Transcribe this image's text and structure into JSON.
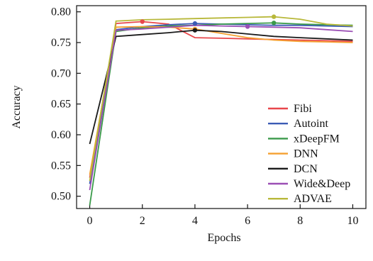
{
  "chart_data": {
    "type": "line",
    "title": "",
    "xlabel": "Epochs",
    "ylabel": "Accuracy",
    "xlim": [
      -0.5,
      10.5
    ],
    "ylim": [
      0.48,
      0.81
    ],
    "xticks": [
      0,
      2,
      4,
      6,
      8,
      10
    ],
    "yticks": [
      0.5,
      0.55,
      0.6,
      0.65,
      0.7,
      0.75,
      0.8
    ],
    "xtick_labels": [
      "0",
      "2",
      "4",
      "6",
      "8",
      "10"
    ],
    "ytick_labels": [
      "0.50",
      "0.55",
      "0.60",
      "0.65",
      "0.70",
      "0.75",
      "0.80"
    ],
    "grid": false,
    "legend_position": "bottom-right",
    "x": [
      0,
      1,
      2,
      3,
      4,
      5,
      6,
      7,
      8,
      9,
      10
    ],
    "series": [
      {
        "name": "Fibi",
        "color": "#e8474b",
        "values": [
          0.53,
          0.781,
          0.784,
          0.78,
          0.758,
          0.757,
          0.756,
          0.755,
          0.754,
          0.753,
          0.752
        ],
        "marker_index": 2
      },
      {
        "name": "Autoint",
        "color": "#3b5bb5",
        "values": [
          0.52,
          0.771,
          0.776,
          0.779,
          0.781,
          0.78,
          0.779,
          0.778,
          0.778,
          0.777,
          0.776
        ],
        "marker_index": 4
      },
      {
        "name": "xDeepFM",
        "color": "#3a9a4a",
        "values": [
          0.485,
          0.768,
          0.774,
          0.777,
          0.778,
          0.78,
          0.781,
          0.782,
          0.78,
          0.779,
          0.778
        ],
        "marker_index": 7
      },
      {
        "name": "DNN",
        "color": "#f5a030",
        "values": [
          0.535,
          0.775,
          0.776,
          0.775,
          0.772,
          0.765,
          0.758,
          0.754,
          0.752,
          0.751,
          0.75
        ],
        "marker_index": 4
      },
      {
        "name": "DCN",
        "color": "#1a1a1a",
        "values": [
          0.585,
          0.76,
          0.763,
          0.766,
          0.77,
          0.768,
          0.764,
          0.76,
          0.758,
          0.756,
          0.754
        ],
        "marker_index": 4
      },
      {
        "name": "Wide&Deep",
        "color": "#9b4fb5",
        "values": [
          0.51,
          0.77,
          0.772,
          0.775,
          0.778,
          0.777,
          0.776,
          0.775,
          0.774,
          0.771,
          0.768
        ],
        "marker_index": 6
      },
      {
        "name": "ADVAE",
        "color": "#b8b83a",
        "values": [
          0.525,
          0.785,
          0.787,
          0.788,
          0.789,
          0.79,
          0.791,
          0.792,
          0.788,
          0.78,
          0.777
        ],
        "marker_index": 7
      }
    ]
  }
}
